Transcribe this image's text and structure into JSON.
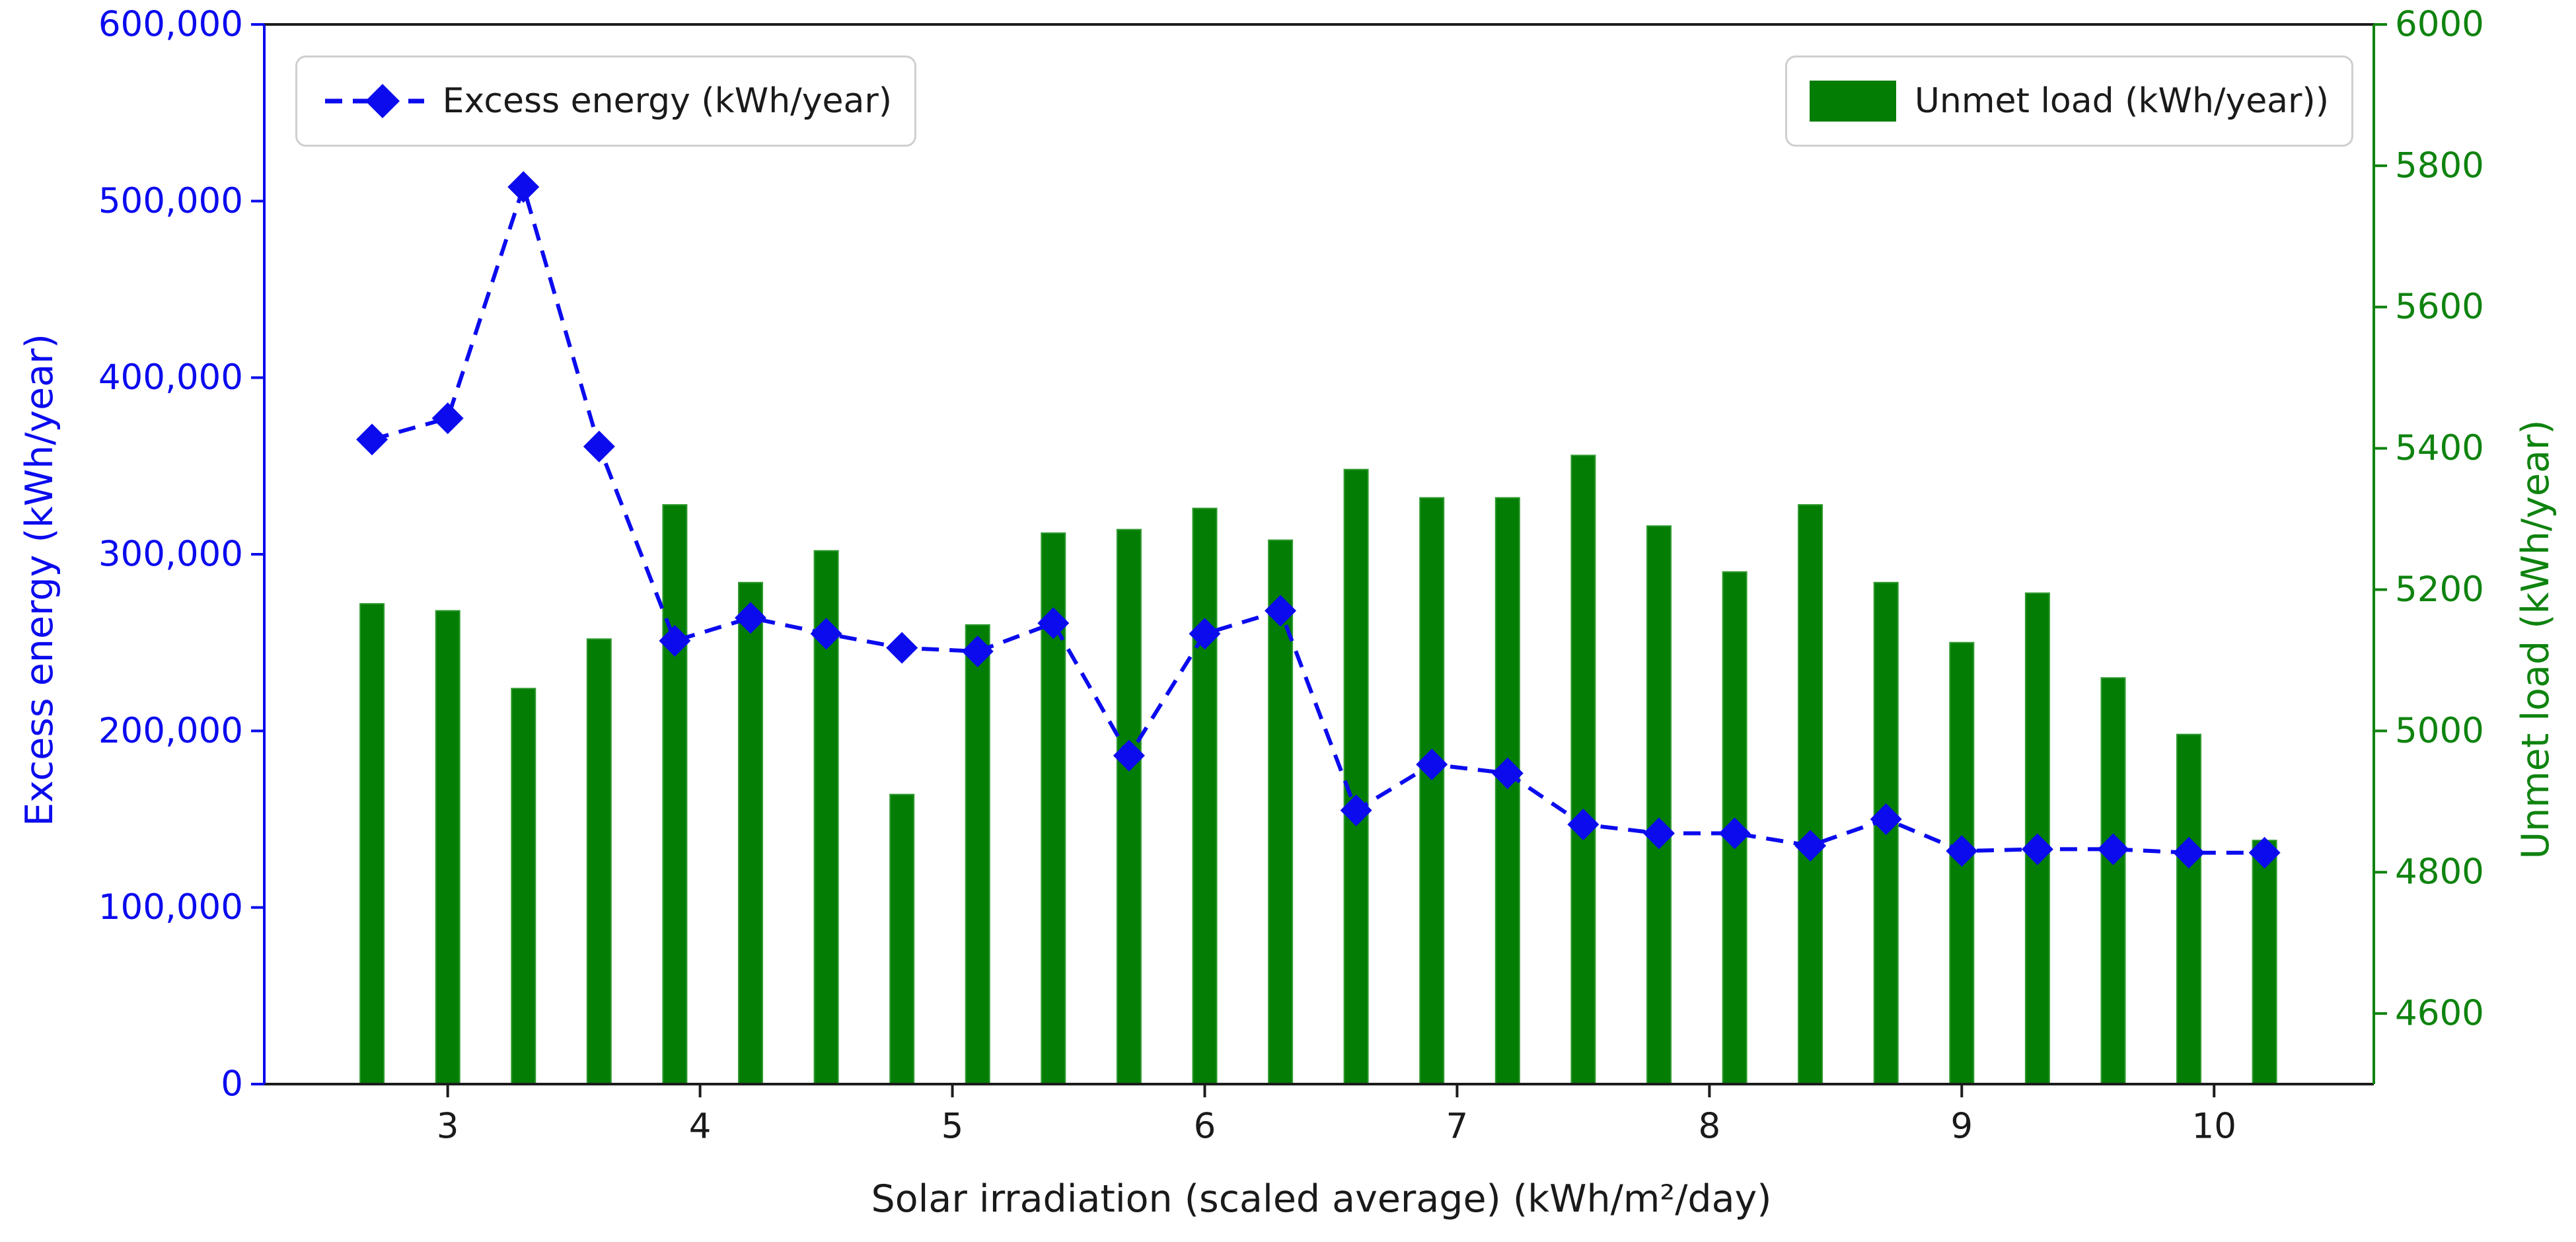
{
  "colors": {
    "blue": "#0b0bee",
    "bar_green": "#047d04",
    "bar_edge_green": "#2f9a2f",
    "axis_green": "#0f830f",
    "spine_dark": "#1c1c1c",
    "legend_border": "#cfcfcf"
  },
  "legend": {
    "excess_label": "Excess energy (kWh/year)",
    "unmet_label": "Unmet load (kWh/year))"
  },
  "chart_data": {
    "type": "bar+line (dual axis)",
    "x": [
      2.7,
      3.0,
      3.3,
      3.6,
      3.9,
      4.2,
      4.5,
      4.8,
      5.1,
      5.4,
      5.7,
      6.0,
      6.3,
      6.6,
      6.9,
      7.2,
      7.5,
      7.8,
      8.1,
      8.4,
      8.7,
      9.0,
      9.3,
      9.6,
      9.9,
      10.2
    ],
    "series": [
      {
        "name": "Excess energy (kWh/year)",
        "type": "line",
        "axis": "left",
        "marker": "diamond",
        "linestyle": "dashed",
        "color": "#0b0bee",
        "values": [
          365000,
          377000,
          508000,
          361000,
          251000,
          264000,
          255000,
          247000,
          245000,
          261000,
          186000,
          255000,
          268000,
          155000,
          181000,
          176000,
          147000,
          142000,
          142000,
          135000,
          150000,
          132000,
          133000,
          133000,
          131000,
          131000
        ]
      },
      {
        "name": "Unmet load (kWh/year))",
        "type": "bar",
        "axis": "right",
        "color": "#047d04",
        "values": [
          5180,
          5170,
          5060,
          5130,
          5320,
          5210,
          5255,
          4910,
          5150,
          5280,
          5285,
          5315,
          5270,
          5370,
          5330,
          5330,
          5390,
          5290,
          5225,
          5320,
          5210,
          5125,
          5195,
          5075,
          4995,
          4845
        ]
      }
    ],
    "x_axis": {
      "label": "Solar irradiation (scaled average) (kWh/m²/day)",
      "ticks": [
        3,
        4,
        5,
        6,
        7,
        8,
        9,
        10
      ],
      "range": [
        2.273,
        10.633
      ]
    },
    "left_axis": {
      "label": "Excess energy (kWh/year)",
      "tick_labels": [
        "0",
        "100,000",
        "200,000",
        "300,000",
        "400,000",
        "500,000",
        "600,000"
      ],
      "tick_values": [
        0,
        100000,
        200000,
        300000,
        400000,
        500000,
        600000
      ],
      "range": [
        0,
        600000
      ],
      "color": "#0b0bee"
    },
    "right_axis": {
      "label": "Unmet load (kWh/year)",
      "tick_labels": [
        "4600",
        "4800",
        "5000",
        "5200",
        "5400",
        "5600",
        "5800",
        "6000"
      ],
      "tick_values": [
        4600,
        4800,
        5000,
        5200,
        5400,
        5600,
        5800,
        6000
      ],
      "range": [
        4500,
        6000
      ],
      "color": "#0f830f"
    },
    "grid": false,
    "legend_positions": [
      "upper left",
      "upper right"
    ]
  }
}
